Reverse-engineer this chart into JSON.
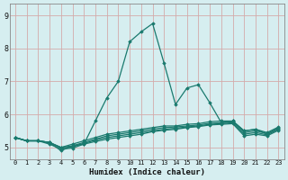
{
  "xlabel": "Humidex (Indice chaleur)",
  "background_color": "#d6eef0",
  "grid_color": "#c8dfe0",
  "line_color": "#1a7a6e",
  "xlim": [
    -0.5,
    23.5
  ],
  "ylim": [
    4.65,
    9.35
  ],
  "yticks": [
    5,
    6,
    7,
    8,
    9
  ],
  "xticks": [
    0,
    1,
    2,
    3,
    4,
    5,
    6,
    7,
    8,
    9,
    10,
    11,
    12,
    13,
    14,
    15,
    16,
    17,
    18,
    19,
    20,
    21,
    22,
    23
  ],
  "series": [
    [
      5.3,
      5.2,
      5.2,
      5.15,
      4.9,
      5.05,
      5.1,
      5.8,
      6.5,
      7.0,
      8.2,
      8.5,
      8.75,
      7.55,
      6.3,
      6.8,
      6.9,
      6.35,
      5.75,
      5.8,
      5.5,
      5.55,
      5.4,
      5.6
    ],
    [
      5.3,
      5.2,
      5.2,
      5.15,
      5.0,
      5.1,
      5.2,
      5.3,
      5.4,
      5.45,
      5.5,
      5.55,
      5.6,
      5.65,
      5.65,
      5.7,
      5.72,
      5.78,
      5.8,
      5.8,
      5.5,
      5.55,
      5.45,
      5.62
    ],
    [
      5.3,
      5.2,
      5.2,
      5.15,
      5.0,
      5.05,
      5.15,
      5.25,
      5.35,
      5.4,
      5.45,
      5.5,
      5.55,
      5.6,
      5.62,
      5.65,
      5.68,
      5.73,
      5.75,
      5.78,
      5.45,
      5.5,
      5.42,
      5.58
    ],
    [
      5.3,
      5.2,
      5.2,
      5.15,
      4.98,
      5.02,
      5.12,
      5.22,
      5.3,
      5.35,
      5.4,
      5.45,
      5.5,
      5.55,
      5.58,
      5.62,
      5.65,
      5.7,
      5.72,
      5.75,
      5.4,
      5.45,
      5.38,
      5.55
    ],
    [
      5.3,
      5.2,
      5.2,
      5.1,
      4.95,
      4.98,
      5.1,
      5.18,
      5.25,
      5.3,
      5.35,
      5.4,
      5.48,
      5.52,
      5.55,
      5.6,
      5.63,
      5.68,
      5.7,
      5.72,
      5.35,
      5.4,
      5.35,
      5.52
    ]
  ]
}
